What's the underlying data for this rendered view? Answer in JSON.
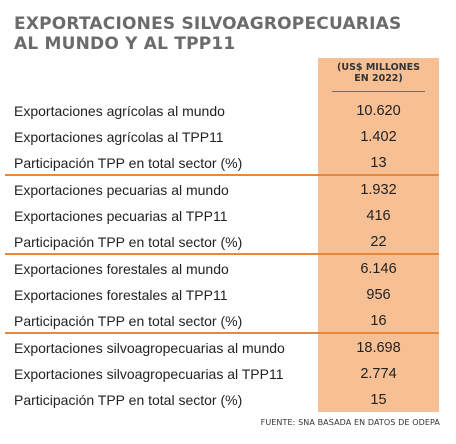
{
  "title": {
    "line1": "EXPORTACIONES SILVOAGROPECUARIAS",
    "line2": "AL MUNDO Y AL TPP11"
  },
  "column_header": {
    "line1": "(US$ MILLONES",
    "line2": "EN 2022)"
  },
  "groups": [
    {
      "rows": [
        {
          "label": "Exportaciones agrícolas al mundo",
          "value": "10.620"
        },
        {
          "label": "Exportaciones agrícolas al TPP11",
          "value": "1.402"
        },
        {
          "label": "Participación TPP en total sector (%)",
          "value": "13"
        }
      ]
    },
    {
      "rows": [
        {
          "label": "Exportaciones pecuarias al mundo",
          "value": "1.932"
        },
        {
          "label": "Exportaciones pecuarias al TPP11",
          "value": "416"
        },
        {
          "label": "Participación TPP en total sector  (%)",
          "value": "22"
        }
      ]
    },
    {
      "rows": [
        {
          "label": "Exportaciones forestales al mundo",
          "value": "6.146"
        },
        {
          "label": "Exportaciones forestales al TPP11",
          "value": "956"
        },
        {
          "label": "Participación TPP en total sector  (%)",
          "value": "16"
        }
      ]
    },
    {
      "rows": [
        {
          "label": "Exportaciones silvoagropecuarias al mundo",
          "value": "18.698"
        },
        {
          "label": "Exportaciones silvoagropecuarias al TPP11",
          "value": "2.774"
        },
        {
          "label": "Participación TPP en total sector (%)",
          "value": "15"
        }
      ]
    }
  ],
  "source": "FUENTE: SNA BASADA EN DATOS DE ODEPA",
  "colors": {
    "panel": "#f7bf94",
    "separator": "#e9873a",
    "title": "#6b6b6b"
  }
}
